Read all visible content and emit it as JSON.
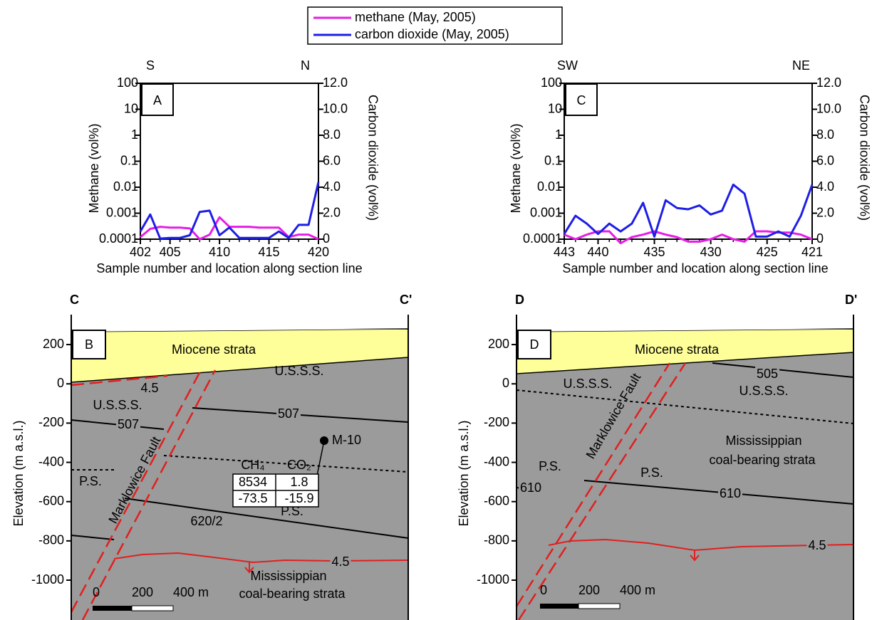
{
  "chart_data": [
    {
      "type": "line",
      "panel": "A",
      "left_end": "S",
      "right_end": "N",
      "ylabel": "Methane (vol%)",
      "y2label": "Carbon dioxide (vol%)",
      "xlabel": "Sample number and location along section line",
      "x": [
        402,
        403,
        404,
        405,
        406,
        407,
        408,
        409,
        410,
        411,
        412,
        413,
        414,
        415,
        416,
        417,
        418,
        419,
        420
      ],
      "xlim": [
        402,
        420
      ],
      "xticks": [
        402,
        405,
        410,
        415,
        420
      ],
      "ylim": [
        0.0001,
        100
      ],
      "yscale": "log",
      "yticks": [
        0.0001,
        0.001,
        0.01,
        0.1,
        1,
        10,
        100
      ],
      "y2lim": [
        0,
        12
      ],
      "y2ticks": [
        0,
        {
          "value": 2,
          "label": "2.0"
        },
        {
          "value": 4,
          "label": "4.0"
        },
        {
          "value": 6,
          "label": "6.0"
        },
        {
          "value": 8,
          "label": "8.0"
        },
        {
          "value": 10,
          "label": "10.0"
        },
        {
          "value": 12,
          "label": "12.0"
        }
      ],
      "series": [
        {
          "name": "methane (May, 2005)",
          "color": "#e61ee6",
          "values": [
            0.00012,
            0.00025,
            0.0003,
            0.00028,
            0.00028,
            0.00026,
            0.0001,
            0.00015,
            0.0007,
            0.0003,
            0.0003,
            0.0003,
            0.00028,
            0.00028,
            0.00028,
            0.00012,
            0.00015,
            0.00015,
            0.0001
          ]
        },
        {
          "name": "carbon dioxide (May, 2005)",
          "color": "#1e1ee6",
          "axis": "y2",
          "values": [
            0.6,
            1.9,
            0.05,
            0.1,
            0.1,
            0.3,
            2.1,
            2.2,
            0.3,
            0.9,
            0.1,
            0.1,
            0.1,
            0.1,
            0.6,
            0.1,
            1.1,
            1.1,
            4.4
          ]
        }
      ]
    },
    {
      "type": "line",
      "panel": "C",
      "left_end": "SW",
      "right_end": "NE",
      "ylabel": "Methane (vol%)",
      "y2label": "Carbon dioxide (vol%)",
      "xlabel": "Sample number and location along section line",
      "x": [
        443,
        442,
        441,
        440,
        439,
        438,
        437,
        436,
        435,
        434,
        433,
        432,
        431,
        430,
        429,
        428,
        427,
        426,
        425,
        424,
        423,
        422,
        421
      ],
      "xlim": [
        443,
        421
      ],
      "xticks": [
        443,
        440,
        435,
        430,
        425,
        421
      ],
      "ylim": [
        0.0001,
        100
      ],
      "yscale": "log",
      "yticks": [
        0.0001,
        0.001,
        0.01,
        0.1,
        1,
        10,
        100
      ],
      "y2lim": [
        0,
        12
      ],
      "y2ticks": [
        0,
        {
          "value": 2,
          "label": "2.0"
        },
        {
          "value": 4,
          "label": "4.0"
        },
        {
          "value": 6,
          "label": "6.0"
        },
        {
          "value": 8,
          "label": "8.0"
        },
        {
          "value": 10,
          "label": "10.0"
        },
        {
          "value": 12,
          "label": "12.0"
        }
      ],
      "series": [
        {
          "color": "#e61ee6",
          "values": [
            0.00015,
            0.0001,
            0.00015,
            0.0002,
            0.0002,
            7e-05,
            0.00012,
            0.00015,
            0.0002,
            0.00015,
            0.00012,
            8e-05,
            8e-05,
            0.0001,
            0.00015,
            0.0001,
            8e-05,
            0.0002,
            0.0002,
            0.00018,
            0.00018,
            0.00015,
            0.0001
          ]
        },
        {
          "color": "#1e1ee6",
          "axis": "y2",
          "values": [
            0.4,
            1.8,
            1.2,
            0.4,
            1.2,
            0.6,
            1.2,
            2.8,
            0.2,
            3,
            2.4,
            2.3,
            2.6,
            1.9,
            2.2,
            4.2,
            3.5,
            0.2,
            0.2,
            0.6,
            0.2,
            1.8,
            4.2
          ]
        }
      ]
    },
    {
      "type": "section",
      "panel": "B",
      "left_end": "C",
      "right_end": "C'",
      "ylabel": "Elevation (m a.s.l.)",
      "ylim": [
        -1203,
        280
      ],
      "yticks": [
        -1000,
        -800,
        -600,
        -400,
        -200,
        0,
        200
      ],
      "labels": [
        "Miocene strata",
        "U.S.S.S.",
        "U.S.S.S.",
        "507",
        "507",
        "P.S.",
        "P.S.",
        "620/2",
        "4.5",
        "4.5",
        "Marklowice Fault",
        "Mississippian",
        "coal-bearing strata"
      ],
      "scale_bar": [
        "0",
        "200",
        "400 m"
      ],
      "well": "M-10",
      "table": {
        "header": [
          "CH₄",
          "CO₂"
        ],
        "rows": [
          [
            8534,
            1.8
          ],
          [
            -73.5,
            -15.9
          ]
        ]
      }
    },
    {
      "type": "section",
      "panel": "D",
      "left_end": "D",
      "right_end": "D'",
      "ylabel": "Elevation (m a.s.l.)",
      "ylim": [
        -1203,
        280
      ],
      "yticks": [
        -1000,
        -800,
        -600,
        -400,
        -200,
        0,
        200
      ],
      "labels": [
        "Miocene strata",
        "505",
        "U.S.S.S.",
        "U.S.S.S.",
        "Mississippian",
        "coal-bearing strata",
        "P.S.",
        "P.S.",
        "610",
        "610",
        "4.5",
        "Marklowice Fault"
      ],
      "scale_bar": [
        "0",
        "200",
        "400 m"
      ]
    }
  ]
}
